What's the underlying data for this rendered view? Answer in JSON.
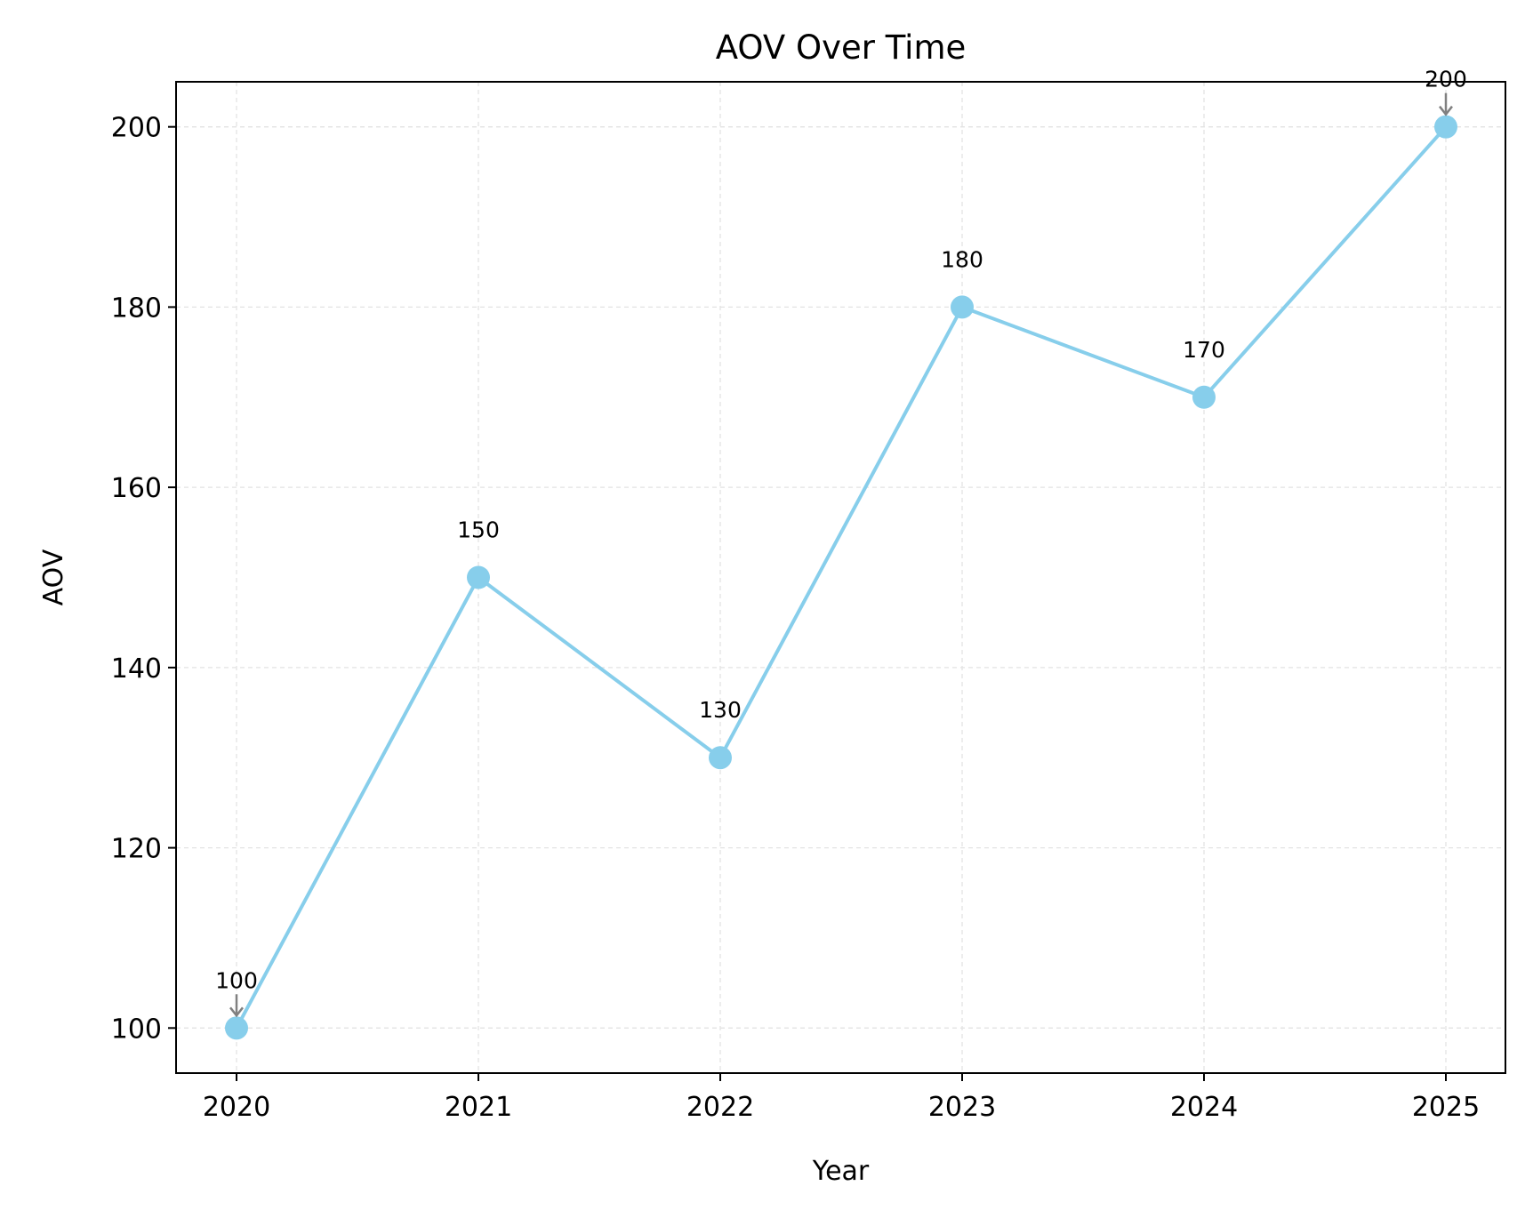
{
  "chart_data": {
    "type": "line",
    "title": "AOV Over Time",
    "xlabel": "Year",
    "ylabel": "AOV",
    "categories": [
      "2020",
      "2021",
      "2022",
      "2023",
      "2024",
      "2025"
    ],
    "series": [
      {
        "values": [
          100,
          150,
          130,
          180,
          170,
          200
        ],
        "color": "#87ceeb"
      }
    ],
    "data_labels": [
      "100",
      "150",
      "130",
      "180",
      "170",
      "200"
    ],
    "highlighted_points": [
      "2020",
      "2025"
    ],
    "annotation_color": "#808080",
    "y_ticks": [
      100,
      120,
      140,
      160,
      180,
      200
    ],
    "y_tick_labels": [
      "100",
      "120",
      "140",
      "160",
      "180",
      "200"
    ],
    "ylim": [
      95,
      205
    ],
    "grid": true,
    "legend": "none"
  }
}
